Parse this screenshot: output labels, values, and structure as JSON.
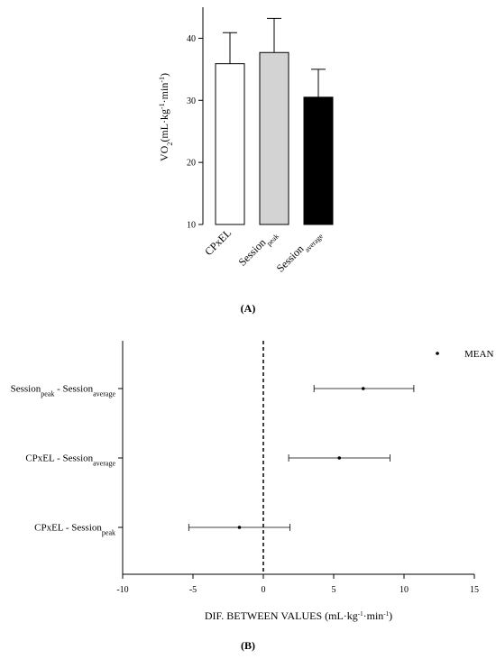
{
  "chart_data": [
    {
      "panel_label": "(A)",
      "type": "bar",
      "ylabel": {
        "base": "VO",
        "sub": "2",
        "rest": "(mL·kg",
        "sup1": "-1",
        "mid": "·min",
        "sup2": "-1",
        "end": ")"
      },
      "ylim": [
        10,
        45
      ],
      "yticks": [
        10,
        20,
        30,
        40
      ],
      "categories": [
        {
          "base": "CPxEL",
          "sub": ""
        },
        {
          "base": "Session",
          "sub": "peak"
        },
        {
          "base": "Session",
          "sub": "average"
        }
      ],
      "values": [
        35.9,
        37.7,
        30.5
      ],
      "error_upper": [
        40.9,
        43.2,
        35.0
      ],
      "colors": [
        "#ffffff",
        "#d3d3d3",
        "#000000"
      ]
    },
    {
      "panel_label": "(B)",
      "type": "scatter",
      "xlabel": {
        "text": "DIF. BETWEEN VALUES (mL·kg",
        "sup1": "-1",
        "mid": "·min",
        "sup2": "-1",
        "end": ")"
      },
      "xlim": [
        -10,
        15
      ],
      "xticks": [
        -10,
        -5,
        0,
        5,
        10,
        15
      ],
      "legend": "MEAN DIF.",
      "rows": [
        {
          "a": "Session",
          "a_sub": "peak",
          "b": "Session",
          "b_sub": "average",
          "mean": 7.1,
          "low": 3.6,
          "high": 10.7
        },
        {
          "a": "CPxEL",
          "a_sub": "",
          "b": "Session",
          "b_sub": "average",
          "mean": 5.4,
          "low": 1.8,
          "high": 9.0
        },
        {
          "a": "CPxEL",
          "a_sub": "",
          "b": "Session",
          "b_sub": "peak",
          "mean": -1.7,
          "low": -5.3,
          "high": 1.9
        }
      ]
    }
  ]
}
